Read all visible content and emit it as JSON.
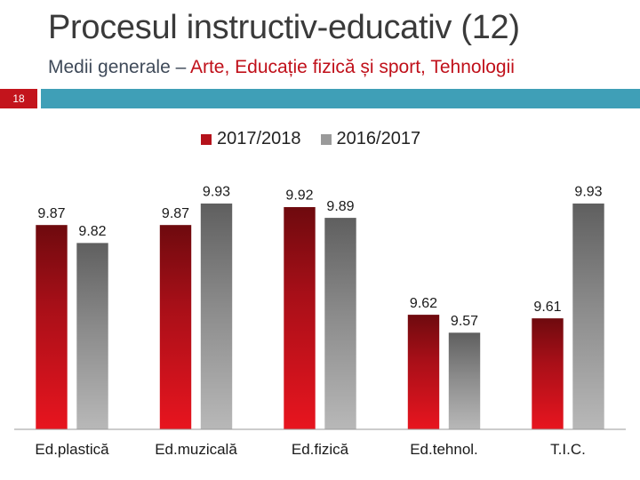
{
  "header": {
    "title": "Procesul instructiv-educativ (12)",
    "subtitle_lead": "Medii generale – ",
    "subtitle_highlight": "Arte, Educație fizică și sport, Tehnologii"
  },
  "slide_number": "18",
  "colors": {
    "accent": "#c3141c",
    "strip": "#3f9fb7",
    "series_2017": "#b5121b",
    "series_2016": "#8a8a8a"
  },
  "chart_data": {
    "type": "bar",
    "title": "",
    "xlabel": "",
    "ylabel": "",
    "categories": [
      "Ed.plastică",
      "Ed.muzicală",
      "Ed.fizică",
      "Ed.tehnol.",
      "T.I.C."
    ],
    "series": [
      {
        "name": "2017/2018",
        "values": [
          9.87,
          9.87,
          9.92,
          9.62,
          9.61
        ],
        "labels": [
          "9.87",
          "9.87",
          "9.92",
          "9.62",
          "9.61"
        ]
      },
      {
        "name": "2016/2017",
        "values": [
          9.82,
          9.93,
          9.89,
          9.57,
          9.93
        ],
        "labels": [
          "9.82",
          "9.93",
          "9.89",
          "9.57",
          "9.93"
        ]
      }
    ],
    "legend_position": "top",
    "grid": false,
    "ylim": [
      0,
      10
    ]
  }
}
